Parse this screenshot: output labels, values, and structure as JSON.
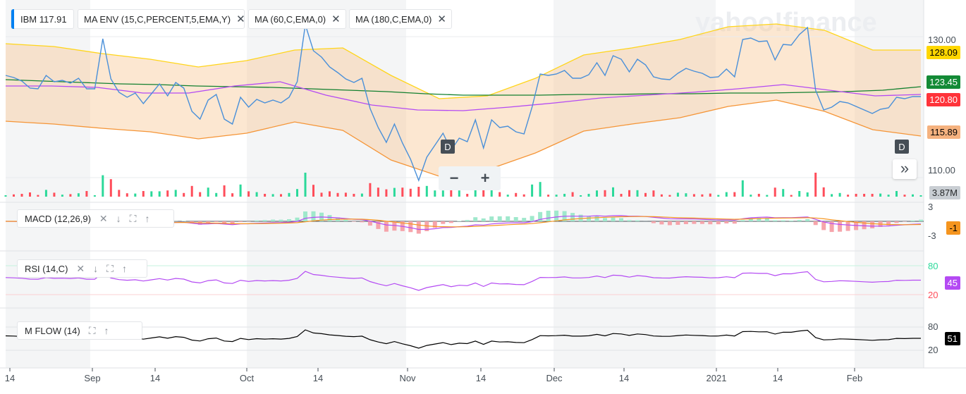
{
  "symbol_chip": {
    "symbol": "IBM",
    "price": "117.91",
    "accent": "#0081f2"
  },
  "overlay_chips": [
    {
      "label": "MA ENV (15,C,PERCENT,5,EMA,Y)"
    },
    {
      "label": "MA (60,C,EMA,0)"
    },
    {
      "label": "MA (180,C,EMA,0)"
    }
  ],
  "watermark": "yahoo!finance",
  "zoom": {
    "minus": "−",
    "plus": "+"
  },
  "expand_label": "»",
  "event_markers": [
    "D",
    "D"
  ],
  "price_tags": [
    {
      "value": "128.09",
      "color": "#ffd700",
      "text_color": "#000"
    },
    {
      "value": "123.45",
      "color": "#138a36",
      "text_color": "#fff"
    },
    {
      "value": "120.80",
      "color": "#ff333a",
      "text_color": "#fff"
    },
    {
      "value": "115.89",
      "color": "#f5b27f",
      "text_color": "#000"
    }
  ],
  "volume_tag": {
    "value": "3.87M"
  },
  "price_axis": [
    "130.00",
    "110.00"
  ],
  "macd": {
    "label": "MACD (12,26,9)",
    "axis": [
      "3",
      "-3"
    ],
    "tag": "-1"
  },
  "rsi": {
    "label": "RSI (14,C)",
    "axis": [
      "80",
      "20"
    ],
    "tag": "45"
  },
  "mflow": {
    "label": "M FLOW (14)",
    "axis": [
      "80",
      "20"
    ],
    "tag": "51"
  },
  "x_axis": [
    "14",
    "Sep",
    "14",
    "Oct",
    "14",
    "Nov",
    "14",
    "Dec",
    "14",
    "2021",
    "14",
    "Feb"
  ],
  "chart_data": {
    "type": "line",
    "title": "IBM",
    "ylim": [
      108,
      133
    ],
    "series": [
      {
        "name": "IBM",
        "color": "#4a90d9",
        "values": [
          124.5,
          124.2,
          123.7,
          122.7,
          122.6,
          124.5,
          123.6,
          123.8,
          123.4,
          124.1,
          122.6,
          122.6,
          129.7,
          124.0,
          122.1,
          121.4,
          122.0,
          120.5,
          121.9,
          123.3,
          121.6,
          123.5,
          122.7,
          119.4,
          118.3,
          121.0,
          121.8,
          118.3,
          117.6,
          121.4,
          120.0,
          121.1,
          120.6,
          121.0,
          120.6,
          121.4,
          123.6,
          131.7,
          128.0,
          127.1,
          125.7,
          124.9,
          124.0,
          123.5,
          124.1,
          119.8,
          117.1,
          115.0,
          117.6,
          114.9,
          112.6,
          109.6,
          112.9,
          114.6,
          116.3,
          113.9,
          115.6,
          115.1,
          118.2,
          114.2,
          118.2,
          117.1,
          117.3,
          116.5,
          116.2,
          120.0,
          124.7,
          124.5,
          124.7,
          125.2,
          124.1,
          124.1,
          124.6,
          126.3,
          124.5,
          127.3,
          126.8,
          125.0,
          126.8,
          126.0,
          124.3,
          124.0,
          123.9,
          124.8,
          125.5,
          125.1,
          124.8,
          124.2,
          124.3,
          125.4,
          124.3,
          129.6,
          129.8,
          129.3,
          129.4,
          126.7,
          128.9,
          128.8,
          130.3,
          131.3,
          122.4,
          119.6,
          120.0,
          120.8,
          120.6,
          120.1,
          119.6,
          119.1,
          119.7,
          119.9,
          121.4,
          121.2,
          121.5,
          121.5
        ]
      },
      {
        "name": "MA (60,C,EMA,0)",
        "color": "#13802f",
        "values": [
          123.9,
          123.7,
          123.5,
          123.3,
          123.2,
          123.0,
          122.9,
          122.8,
          122.6,
          122.4,
          122.2,
          121.9,
          121.7,
          121.7,
          121.7,
          121.8,
          121.8,
          121.9,
          121.9,
          122.0,
          122.0,
          122.1,
          122.2,
          122.4,
          122.9
        ]
      },
      {
        "name": "MA (180,C,EMA,0)",
        "color": "#b44af3",
        "values": [
          123.0,
          123.0,
          122.8,
          122.0,
          122.0,
          123.0,
          123.6,
          121.7,
          120.3,
          119.6,
          119.5,
          120.0,
          120.6,
          121.3,
          121.7,
          122.1,
          122.6,
          123.2,
          122.4,
          121.6,
          121.8
        ]
      },
      {
        "name": "MA ENV upper",
        "color": "#ffd51a",
        "values": [
          129.0,
          128.6,
          127.6,
          126.8,
          125.7,
          126.6,
          128.1,
          128.4,
          124.5,
          121.2,
          121.6,
          124.1,
          127.4,
          128.4,
          129.6,
          131.4,
          131.8,
          130.9,
          128.1,
          128.1
        ]
      },
      {
        "name": "MA ENV lower",
        "color": "#f59537",
        "values": [
          118.0,
          117.6,
          117.0,
          116.5,
          115.5,
          116.3,
          117.9,
          116.7,
          112.5,
          110.2,
          111.1,
          113.5,
          116.6,
          117.6,
          118.5,
          120.1,
          121.0,
          119.4,
          116.8,
          115.9
        ]
      }
    ]
  }
}
